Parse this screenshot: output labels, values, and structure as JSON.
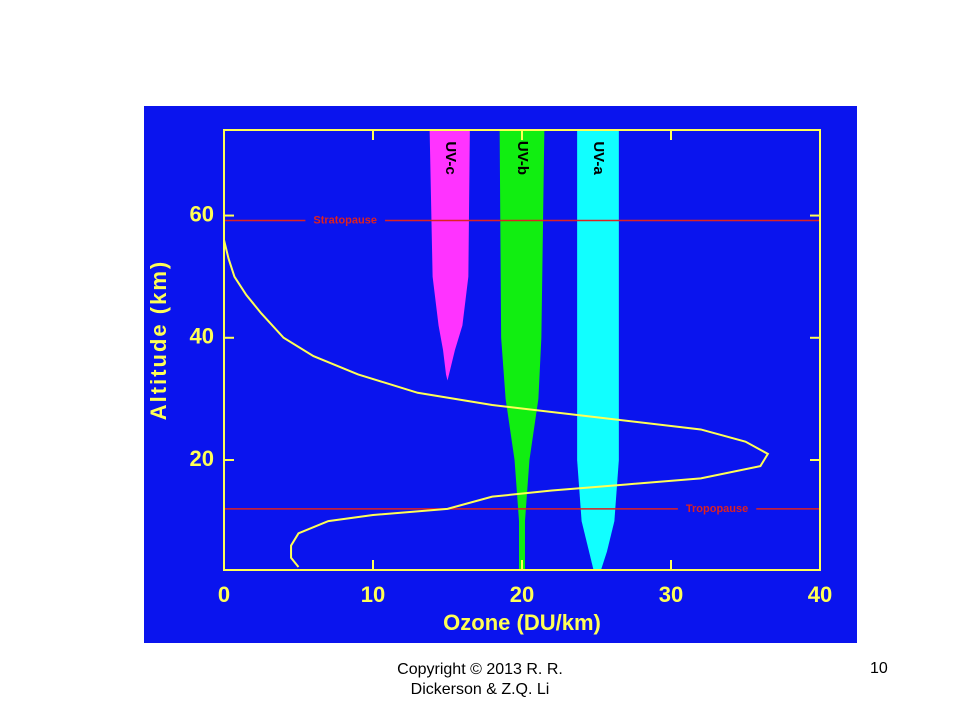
{
  "chart_data": {
    "type": "profile",
    "xlabel": "Ozone (DU/km)",
    "ylabel": "Altitude (km)",
    "xlim": [
      0,
      40
    ],
    "xticks": [
      0,
      10,
      20,
      30,
      40
    ],
    "ylim": [
      2,
      74
    ],
    "yticks": [
      20,
      40,
      60
    ],
    "series": [
      {
        "color": "#ffff55",
        "x": [
          5,
          4.5,
          4.5,
          5,
          7,
          10,
          15,
          18,
          22,
          27,
          32,
          36,
          36.5,
          35,
          32,
          25,
          18,
          13,
          9,
          6,
          4,
          2.5,
          1.5,
          0.7,
          0.3,
          0
        ],
        "y": [
          2.5,
          4,
          6,
          8,
          10,
          11,
          12,
          14,
          15,
          16,
          17,
          19,
          21,
          23,
          25,
          27,
          29,
          31,
          34,
          37,
          40,
          44,
          47,
          50,
          53,
          56
        ]
      }
    ],
    "bands": [
      {
        "name": "UV-c",
        "color": "#ff33ff",
        "y": [
          74,
          50,
          42,
          38,
          34,
          33
        ],
        "left": [
          13.8,
          14,
          14.4,
          14.7,
          14.9,
          15
        ],
        "right": [
          16.5,
          16.4,
          16,
          15.5,
          15.1,
          15
        ]
      },
      {
        "name": "UV-b",
        "color": "#11ee11",
        "y": [
          74,
          40,
          30,
          20,
          10,
          2
        ],
        "left": [
          18.5,
          18.6,
          18.9,
          19.5,
          19.8,
          19.8
        ],
        "right": [
          21.5,
          21.3,
          21.1,
          20.5,
          20.2,
          20.2
        ]
      },
      {
        "name": "UV-a",
        "color": "#11ffff",
        "y": [
          74,
          20,
          10,
          5,
          2
        ],
        "left": [
          23.7,
          23.7,
          24,
          24.5,
          24.8
        ],
        "right": [
          26.5,
          26.5,
          26.2,
          25.7,
          25.3
        ]
      }
    ],
    "reference_lines": [
      {
        "label": "Stratopause",
        "value": 59.2,
        "color": "#dd2222",
        "label_x": 6
      },
      {
        "label": "Tropopause",
        "value": 12,
        "color": "#dd2222",
        "label_x": 31
      }
    ]
  },
  "footer": {
    "copyright": "Copyright © 2013  R. R. Dickerson & Z.Q. Li",
    "page": "10"
  }
}
